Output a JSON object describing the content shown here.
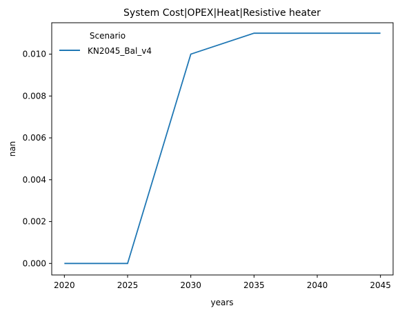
{
  "chart_data": {
    "type": "line",
    "title": "System Cost|OPEX|Heat|Resistive heater",
    "xlabel": "years",
    "ylabel": "nan",
    "x": [
      2020,
      2025,
      2030,
      2035,
      2040,
      2045
    ],
    "x_ticks": [
      "2020",
      "2025",
      "2030",
      "2035",
      "2040",
      "2045"
    ],
    "y_ticks": [
      "0.000",
      "0.002",
      "0.004",
      "0.006",
      "0.008",
      "0.010"
    ],
    "xlim": [
      2019,
      2046
    ],
    "ylim": [
      -0.00055,
      0.0115
    ],
    "series": [
      {
        "name": "KN2045_Bal_v4",
        "color": "#1f77b4",
        "values": [
          0.0,
          0.0,
          0.01,
          0.011,
          0.011,
          0.011
        ]
      }
    ],
    "legend": {
      "title": "Scenario",
      "placement": "top-left"
    },
    "grid": false
  }
}
